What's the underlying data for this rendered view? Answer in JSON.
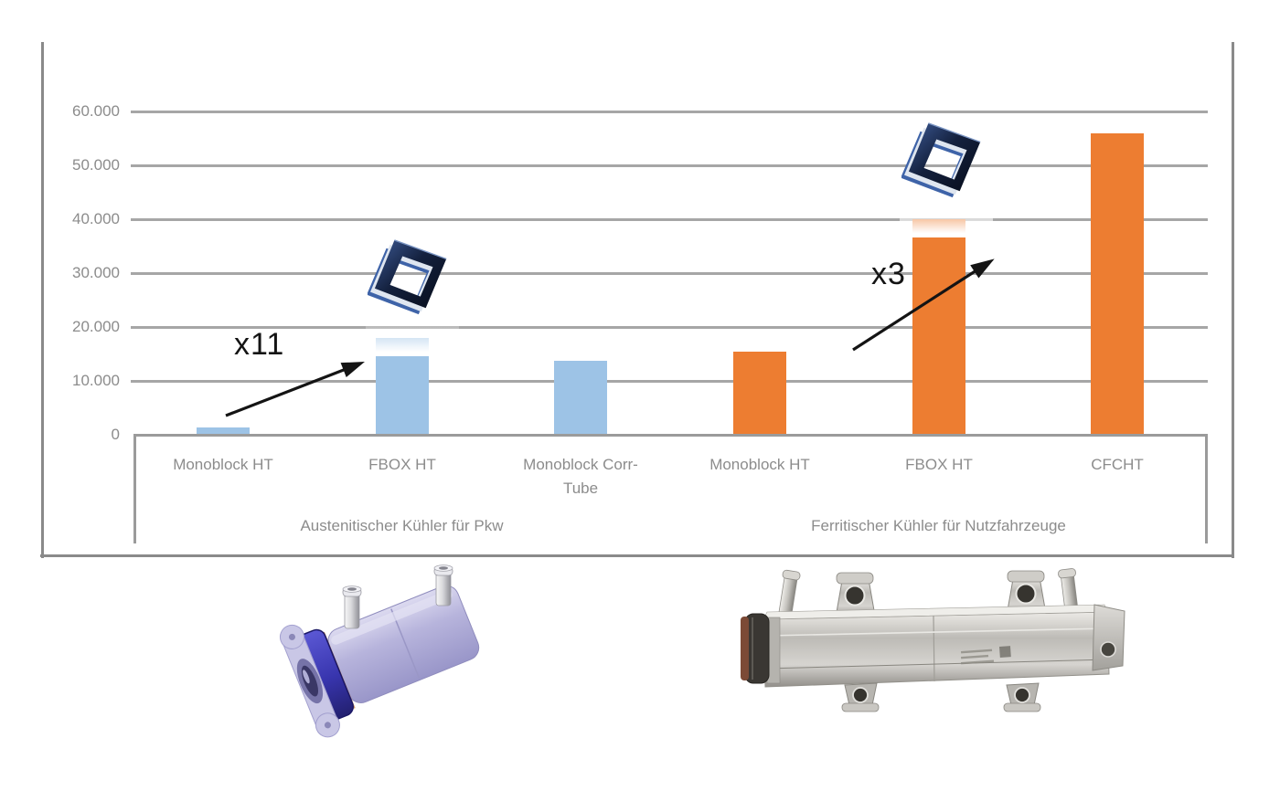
{
  "chart_data": {
    "type": "bar",
    "title": "",
    "categories": [
      "Monoblock HT",
      "FBOX HT",
      "Monoblock Corr-Tube",
      "Monoblock HT",
      "FBOX HT",
      "CFCHT"
    ],
    "values": [
      1300,
      18000,
      13700,
      15500,
      40000,
      56000
    ],
    "bar_colors": [
      "#9DC3E6",
      "#9DC3E6",
      "#9DC3E6",
      "#ED7D31",
      "#ED7D31",
      "#ED7D31"
    ],
    "groups": [
      {
        "label": "Austenitischer Kühler für Pkw",
        "from": 0,
        "to": 2
      },
      {
        "label": "Ferritischer Kühler für Nutzfahrzeuge",
        "from": 3,
        "to": 5
      }
    ],
    "y_axis": {
      "ticks": [
        0,
        10000,
        20000,
        30000,
        40000,
        50000,
        60000
      ],
      "tick_labels": [
        "0",
        "10.000",
        "20.000",
        "30.000",
        "40.000",
        "50.000",
        "60.000"
      ],
      "ylim": [
        0,
        65000
      ]
    },
    "grid": "horizontal",
    "legend": "none",
    "annotations": [
      {
        "text": "x11"
      },
      {
        "text": "x3"
      }
    ],
    "icons": [
      {
        "name": "fbox-tube-frame-icon",
        "above_category_index": 1
      },
      {
        "name": "fbox-tube-frame-icon",
        "above_category_index": 4
      }
    ],
    "colors": {
      "series_blue": "#9DC3E6",
      "series_orange": "#ED7D31",
      "gridline": "#A6A6A6",
      "frame": "#878787",
      "category_axis": "#9b9b9b",
      "label_text": "#8C8C8C",
      "annotation_text": "#141414"
    }
  },
  "images": {
    "left": "pkw-cooler-3d-render",
    "right": "nutzfahrzeuge-cooler-photo"
  }
}
